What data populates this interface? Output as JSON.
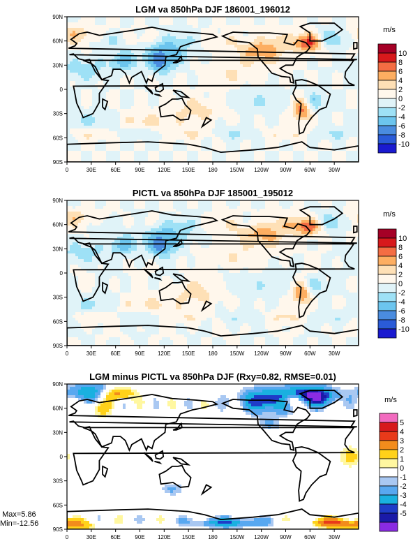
{
  "chart_data": [
    {
      "type": "heatmap",
      "title": "LGM va 850hPa DJF 186001_196012",
      "units": "m/s",
      "x_ticks": [
        "0",
        "30E",
        "60E",
        "90E",
        "120E",
        "150E",
        "180",
        "150W",
        "120W",
        "90W",
        "60W",
        "30W"
      ],
      "y_ticks": [
        "90N",
        "60N",
        "30N",
        "0",
        "30S",
        "60S",
        "90S"
      ],
      "colorbar_labels": [
        "10",
        "8",
        "6",
        "4",
        "2",
        "0",
        "-2",
        "-4",
        "-6",
        "-8",
        "-10"
      ],
      "colors": [
        "#a50026",
        "#d7191c",
        "#f46d43",
        "#fdae61",
        "#fee0b6",
        "#fff7ec",
        "#e0f3f8",
        "#9ee1f6",
        "#6cc5ee",
        "#4a8cdf",
        "#2a5bd8",
        "#1a1ad0"
      ]
    },
    {
      "type": "heatmap",
      "title": "PICTL va 850hPa DJF 185001_195012",
      "units": "m/s",
      "x_ticks": [
        "0",
        "30E",
        "60E",
        "90E",
        "120E",
        "150E",
        "180",
        "150W",
        "120W",
        "90W",
        "60W",
        "30W"
      ],
      "y_ticks": [
        "90N",
        "60N",
        "30N",
        "0",
        "30S",
        "60S",
        "90S"
      ],
      "colorbar_labels": [
        "10",
        "8",
        "6",
        "4",
        "2",
        "0",
        "-2",
        "-4",
        "-6",
        "-8",
        "-10"
      ],
      "colors": [
        "#a50026",
        "#d7191c",
        "#f46d43",
        "#fdae61",
        "#fee0b6",
        "#fff7ec",
        "#e0f3f8",
        "#9ee1f6",
        "#6cc5ee",
        "#4a8cdf",
        "#2a5bd8",
        "#1a1ad0"
      ]
    },
    {
      "type": "heatmap",
      "title": "LGM minus PICTL va 850hPa DJF (Rxy=0.82, RMSE=0.01)",
      "units": "m/s",
      "x_ticks": [
        "0",
        "30E",
        "60E",
        "90E",
        "120E",
        "150E",
        "180",
        "150W",
        "120W",
        "90W",
        "60W",
        "30W"
      ],
      "y_ticks": [
        "90N",
        "60N",
        "30N",
        "0",
        "30S",
        "60S",
        "90S"
      ],
      "colorbar_labels": [
        "5",
        "4",
        "3",
        "2",
        "1",
        "0",
        "-1",
        "-2",
        "-3",
        "-4",
        "-5"
      ],
      "colors": [
        "#f26bbf",
        "#d7191c",
        "#e83a1a",
        "#f28c1c",
        "#ffd21a",
        "#fff7a0",
        "#ffffff",
        "#a9c8f2",
        "#58a8f0",
        "#1ab0e0",
        "#1f3cc8",
        "#1a1aa8",
        "#8a2be2"
      ],
      "stats": {
        "max": "Max=5.86",
        "min": "Min=-12.56"
      }
    }
  ]
}
